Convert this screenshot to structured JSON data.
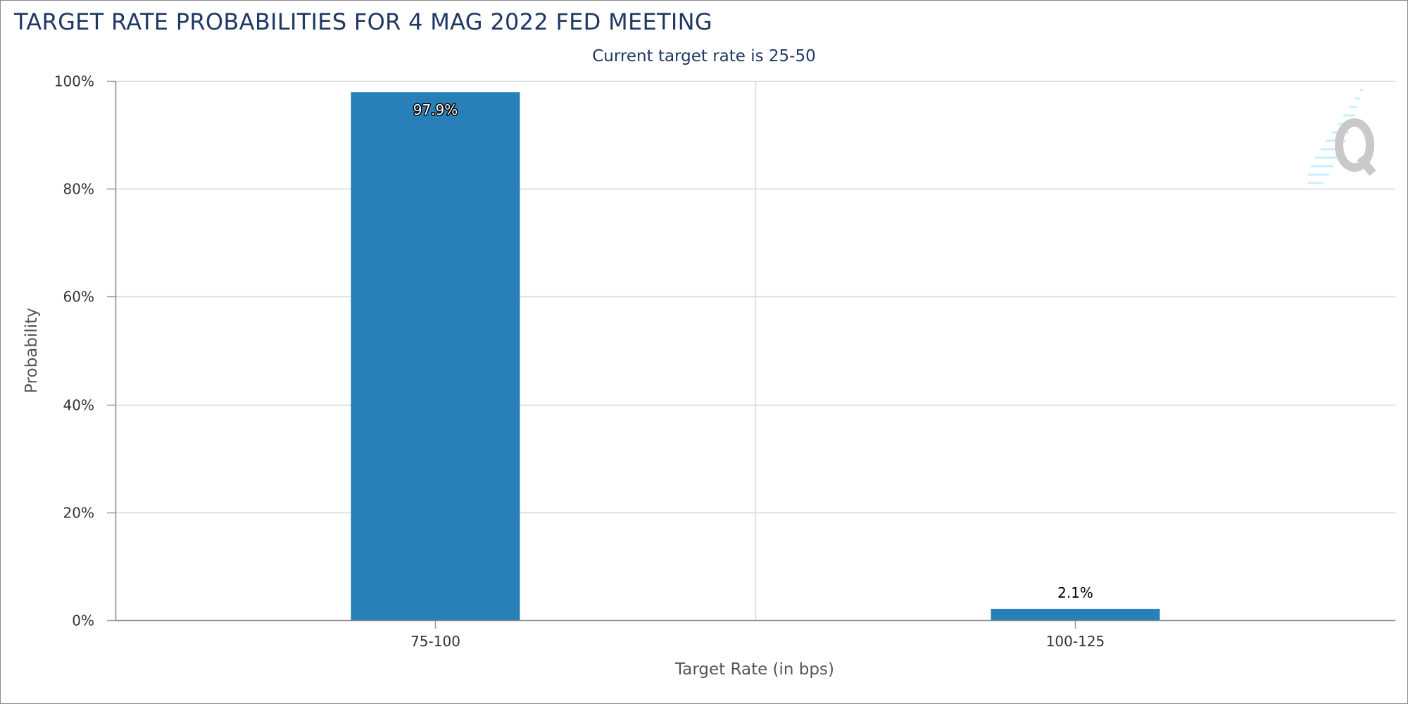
{
  "chart_title": "TARGET RATE PROBABILITIES FOR 4 MAG 2022 FED MEETING",
  "chart_subtitle": "Current target rate is 25-50",
  "chart_data": {
    "type": "bar",
    "title": "TARGET RATE PROBABILITIES FOR 4 MAG 2022 FED MEETING",
    "subtitle": "Current target rate is 25-50",
    "categories": [
      "75-100",
      "100-125"
    ],
    "values": [
      97.9,
      2.1
    ],
    "data_labels": [
      "97.9%",
      "2.1%"
    ],
    "xlabel": "Target Rate (in bps)",
    "ylabel": "Probability",
    "ylim": [
      0,
      100
    ],
    "y_ticks": [
      0,
      20,
      40,
      60,
      80,
      100
    ],
    "y_tick_labels": [
      "0%",
      "20%",
      "40%",
      "60%",
      "80%",
      "100%"
    ],
    "grid": true,
    "bar_color": "#2980b9",
    "legend": "none"
  },
  "watermark_icon": "cme-quikstrike-q-logo"
}
